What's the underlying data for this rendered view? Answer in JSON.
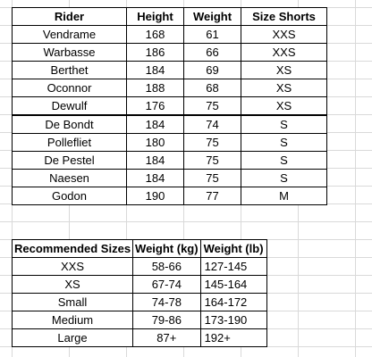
{
  "riders_table": {
    "headers": [
      "Rider",
      "Height",
      "Weight",
      "Size Shorts"
    ],
    "rows": [
      [
        "Vendrame",
        "168",
        "61",
        "XXS"
      ],
      [
        "Warbasse",
        "186",
        "66",
        "XXS"
      ],
      [
        "Berthet",
        "184",
        "69",
        "XS"
      ],
      [
        "Oconnor",
        "188",
        "68",
        "XS"
      ],
      [
        "Dewulf",
        "176",
        "75",
        "XS"
      ],
      [
        "De Bondt",
        "184",
        "74",
        "S"
      ],
      [
        "Pollefliet",
        "180",
        "75",
        "S"
      ],
      [
        "De Pestel",
        "184",
        "75",
        "S"
      ],
      [
        "Naesen",
        "184",
        "75",
        "S"
      ],
      [
        "Godon",
        "190",
        "77",
        "M"
      ]
    ]
  },
  "sizes_table": {
    "headers": [
      "Recommended Sizes",
      "Weight (kg)",
      "Weight (lb)"
    ],
    "rows": [
      [
        "XXS",
        "58-66",
        "127-145"
      ],
      [
        "XS",
        "67-74",
        "145-164"
      ],
      [
        "Small",
        "74-78",
        "164-172"
      ],
      [
        "Medium",
        "79-86",
        "173-190"
      ],
      [
        "Large",
        "87+",
        "192+"
      ]
    ]
  }
}
